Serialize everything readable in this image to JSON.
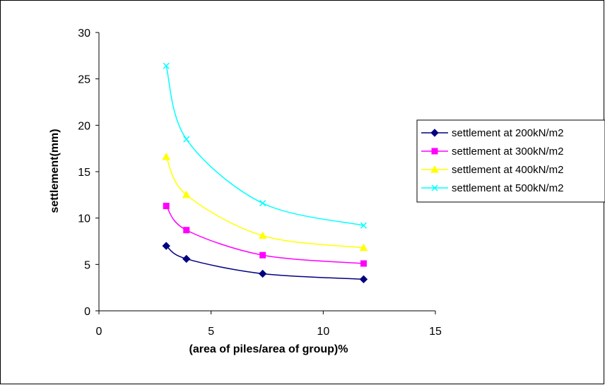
{
  "chart_data": {
    "type": "line",
    "title": "",
    "xlabel": "(area of piles/area of group)%",
    "ylabel": "settlement(mm)",
    "xlim": [
      0,
      15
    ],
    "ylim": [
      0,
      30
    ],
    "xticks": [
      "0",
      "5",
      "10",
      "15"
    ],
    "yticks": [
      "0",
      "5",
      "10",
      "15",
      "20",
      "25",
      "30"
    ],
    "grid": false,
    "legend_position": "right",
    "smoothed": true,
    "x": [
      3,
      3.9,
      7.3,
      11.8
    ],
    "series": [
      {
        "name": "settlement at 200kN/m2",
        "values": [
          7.0,
          5.6,
          4.0,
          3.4
        ],
        "color": "#000080",
        "marker": "diamond"
      },
      {
        "name": "settlement at 300kN/m2",
        "values": [
          11.3,
          8.7,
          6.0,
          5.1
        ],
        "color": "#FF00FF",
        "marker": "square"
      },
      {
        "name": "settlement at 400kN/m2",
        "values": [
          16.6,
          12.5,
          8.1,
          6.8
        ],
        "color": "#FFFF00",
        "marker": "triangle"
      },
      {
        "name": "settlement at 500kN/m2",
        "values": [
          26.4,
          18.5,
          11.6,
          9.2
        ],
        "color": "#00FFFF",
        "marker": "x"
      }
    ]
  }
}
